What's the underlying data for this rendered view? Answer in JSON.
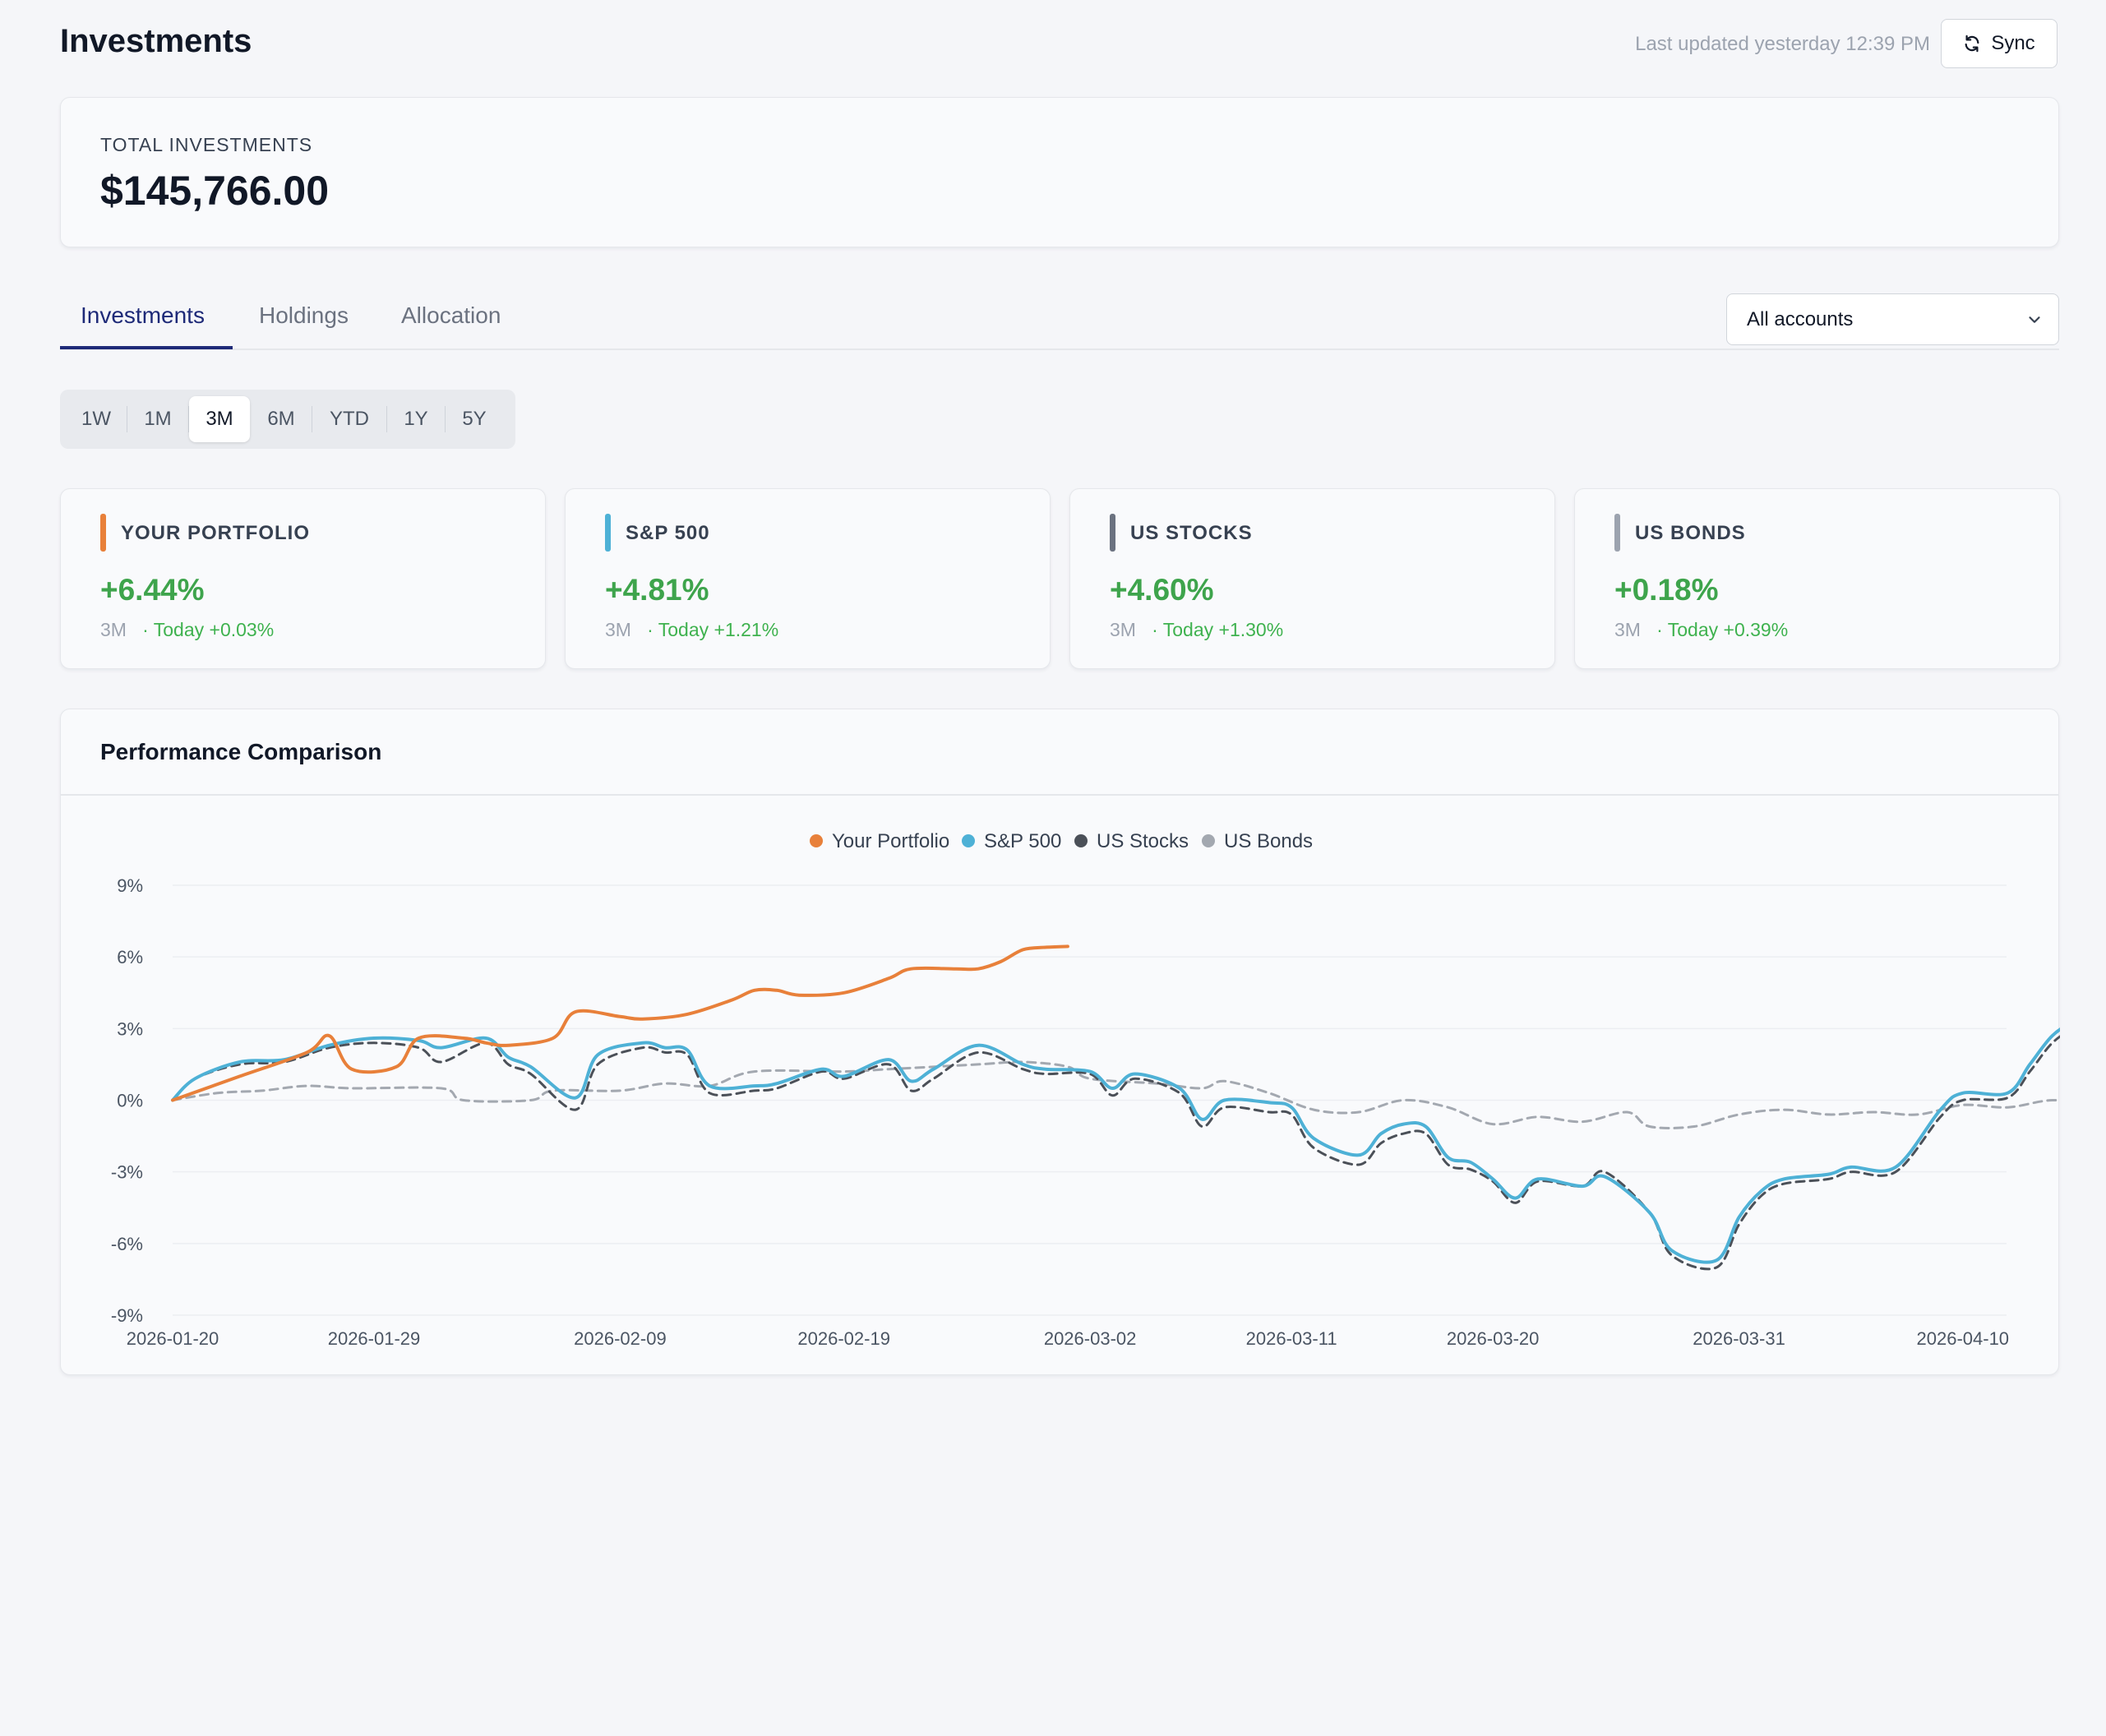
{
  "header": {
    "title": "Investments",
    "last_updated": "Last updated yesterday 12:39 PM",
    "sync_label": "Sync"
  },
  "total": {
    "label": "TOTAL INVESTMENTS",
    "value": "$145,766.00"
  },
  "tabs": [
    {
      "label": "Investments",
      "active": true
    },
    {
      "label": "Holdings",
      "active": false
    },
    {
      "label": "Allocation",
      "active": false
    }
  ],
  "account_select": {
    "value": "All accounts"
  },
  "ranges": [
    {
      "label": "1W",
      "active": false
    },
    {
      "label": "1M",
      "active": false
    },
    {
      "label": "3M",
      "active": true
    },
    {
      "label": "6M",
      "active": false
    },
    {
      "label": "YTD",
      "active": false
    },
    {
      "label": "1Y",
      "active": false
    },
    {
      "label": "5Y",
      "active": false
    }
  ],
  "stats": [
    {
      "label": "YOUR PORTFOLIO",
      "value": "+6.44%",
      "period": "3M",
      "today": "· Today +0.03%",
      "color": "#e8803a"
    },
    {
      "label": "S&P 500",
      "value": "+4.81%",
      "period": "3M",
      "today": "· Today +1.21%",
      "color": "#4eb1d6"
    },
    {
      "label": "US STOCKS",
      "value": "+4.60%",
      "period": "3M",
      "today": "· Today +1.30%",
      "color": "#6b7280"
    },
    {
      "label": "US BONDS",
      "value": "+0.18%",
      "period": "3M",
      "today": "· Today +0.39%",
      "color": "#9ca3af"
    }
  ],
  "performance": {
    "title": "Performance Comparison"
  },
  "chart_data": {
    "type": "line",
    "title": "",
    "xlabel": "",
    "ylabel": "",
    "x_ticks": [
      "2026-01-20",
      "2026-01-29",
      "2026-02-09",
      "2026-02-19",
      "2026-03-02",
      "2026-03-11",
      "2026-03-20",
      "2026-03-31",
      "2026-04-10"
    ],
    "x_range": [
      "2026-01-20",
      "2026-04-17"
    ],
    "y_ticks": [
      "9%",
      "6%",
      "3%",
      "0%",
      "-3%",
      "-6%",
      "-9%"
    ],
    "ylim": [
      -9,
      9
    ],
    "grid": true,
    "legend_position": "top-center",
    "series": [
      {
        "name": "Your Portfolio",
        "color": "#e8803a",
        "dash": false,
        "width": 4,
        "points": [
          [
            "2026-01-20",
            0
          ],
          [
            "2026-01-23",
            1.0
          ],
          [
            "2026-01-26",
            2.0
          ],
          [
            "2026-01-27",
            2.7
          ],
          [
            "2026-01-28",
            1.3
          ],
          [
            "2026-01-30",
            1.4
          ],
          [
            "2026-01-31",
            2.6
          ],
          [
            "2026-02-02",
            2.6
          ],
          [
            "2026-02-03",
            2.4
          ],
          [
            "2026-02-04",
            2.3
          ],
          [
            "2026-02-06",
            2.6
          ],
          [
            "2026-02-07",
            3.7
          ],
          [
            "2026-02-09",
            3.5
          ],
          [
            "2026-02-10",
            3.4
          ],
          [
            "2026-02-12",
            3.6
          ],
          [
            "2026-02-14",
            4.2
          ],
          [
            "2026-02-15",
            4.6
          ],
          [
            "2026-02-16",
            4.6
          ],
          [
            "2026-02-17",
            4.4
          ],
          [
            "2026-02-19",
            4.5
          ],
          [
            "2026-02-21",
            5.1
          ],
          [
            "2026-02-22",
            5.5
          ],
          [
            "2026-02-24",
            5.5
          ],
          [
            "2026-02-25",
            5.5
          ],
          [
            "2026-02-26",
            5.8
          ],
          [
            "2026-02-27",
            6.3
          ],
          [
            "2026-02-28",
            6.4
          ],
          [
            "2026-03-01",
            6.44
          ]
        ]
      },
      {
        "name": "S&P 500",
        "color": "#4eb1d6",
        "dash": false,
        "width": 4,
        "points": [
          [
            "2026-01-20",
            0
          ],
          [
            "2026-01-21",
            0.9
          ],
          [
            "2026-01-23",
            1.6
          ],
          [
            "2026-01-25",
            1.7
          ],
          [
            "2026-01-27",
            2.3
          ],
          [
            "2026-01-29",
            2.6
          ],
          [
            "2026-01-31",
            2.5
          ],
          [
            "2026-02-01",
            2.2
          ],
          [
            "2026-02-03",
            2.6
          ],
          [
            "2026-02-04",
            1.8
          ],
          [
            "2026-02-05",
            1.4
          ],
          [
            "2026-02-07",
            0.1
          ],
          [
            "2026-02-08",
            1.9
          ],
          [
            "2026-02-10",
            2.4
          ],
          [
            "2026-02-11",
            2.2
          ],
          [
            "2026-02-12",
            2.1
          ],
          [
            "2026-02-13",
            0.6
          ],
          [
            "2026-02-15",
            0.6
          ],
          [
            "2026-02-16",
            0.7
          ],
          [
            "2026-02-18",
            1.3
          ],
          [
            "2026-02-19",
            1.0
          ],
          [
            "2026-02-21",
            1.7
          ],
          [
            "2026-02-22",
            0.8
          ],
          [
            "2026-02-23",
            1.3
          ],
          [
            "2026-02-25",
            2.3
          ],
          [
            "2026-02-27",
            1.5
          ],
          [
            "2026-02-28",
            1.3
          ],
          [
            "2026-03-02",
            1.2
          ],
          [
            "2026-03-03",
            0.5
          ],
          [
            "2026-03-04",
            1.1
          ],
          [
            "2026-03-06",
            0.5
          ],
          [
            "2026-03-07",
            -0.8
          ],
          [
            "2026-03-08",
            0
          ],
          [
            "2026-03-10",
            -0.1
          ],
          [
            "2026-03-11",
            -0.3
          ],
          [
            "2026-03-12",
            -1.6
          ],
          [
            "2026-03-14",
            -2.3
          ],
          [
            "2026-03-15",
            -1.4
          ],
          [
            "2026-03-16",
            -1.0
          ],
          [
            "2026-03-17",
            -1.1
          ],
          [
            "2026-03-18",
            -2.4
          ],
          [
            "2026-03-19",
            -2.6
          ],
          [
            "2026-03-20",
            -3.3
          ],
          [
            "2026-03-21",
            -4.1
          ],
          [
            "2026-03-22",
            -3.3
          ],
          [
            "2026-03-24",
            -3.6
          ],
          [
            "2026-03-25",
            -3.2
          ],
          [
            "2026-03-27",
            -4.7
          ],
          [
            "2026-03-28",
            -6.3
          ],
          [
            "2026-03-30",
            -6.7
          ],
          [
            "2026-03-31",
            -4.9
          ],
          [
            "2026-04-01",
            -3.8
          ],
          [
            "2026-04-02",
            -3.3
          ],
          [
            "2026-04-04",
            -3.1
          ],
          [
            "2026-04-05",
            -2.8
          ],
          [
            "2026-04-07",
            -2.8
          ],
          [
            "2026-04-09",
            -0.4
          ],
          [
            "2026-04-10",
            0.3
          ],
          [
            "2026-04-12",
            0.3
          ],
          [
            "2026-04-13",
            1.5
          ],
          [
            "2026-04-14",
            2.7
          ],
          [
            "2026-04-15",
            3.3
          ],
          [
            "2026-04-16",
            3.6
          ],
          [
            "2026-04-17",
            4.81
          ]
        ]
      },
      {
        "name": "US Stocks",
        "color": "#4b5058",
        "dash": true,
        "width": 3,
        "points": [
          [
            "2026-01-20",
            0
          ],
          [
            "2026-01-21",
            0.9
          ],
          [
            "2026-01-23",
            1.5
          ],
          [
            "2026-01-25",
            1.6
          ],
          [
            "2026-01-27",
            2.2
          ],
          [
            "2026-01-29",
            2.4
          ],
          [
            "2026-01-31",
            2.2
          ],
          [
            "2026-02-01",
            1.6
          ],
          [
            "2026-02-03",
            2.4
          ],
          [
            "2026-02-04",
            1.5
          ],
          [
            "2026-02-05",
            1.1
          ],
          [
            "2026-02-07",
            -0.4
          ],
          [
            "2026-02-08",
            1.5
          ],
          [
            "2026-02-10",
            2.2
          ],
          [
            "2026-02-11",
            2.0
          ],
          [
            "2026-02-12",
            1.9
          ],
          [
            "2026-02-13",
            0.3
          ],
          [
            "2026-02-15",
            0.4
          ],
          [
            "2026-02-16",
            0.5
          ],
          [
            "2026-02-18",
            1.2
          ],
          [
            "2026-02-19",
            0.9
          ],
          [
            "2026-02-21",
            1.5
          ],
          [
            "2026-02-22",
            0.4
          ],
          [
            "2026-02-23",
            0.9
          ],
          [
            "2026-02-25",
            2.0
          ],
          [
            "2026-02-27",
            1.3
          ],
          [
            "2026-02-28",
            1.1
          ],
          [
            "2026-03-02",
            1.1
          ],
          [
            "2026-03-03",
            0.2
          ],
          [
            "2026-03-04",
            0.9
          ],
          [
            "2026-03-06",
            0.3
          ],
          [
            "2026-03-07",
            -1.1
          ],
          [
            "2026-03-08",
            -0.3
          ],
          [
            "2026-03-10",
            -0.5
          ],
          [
            "2026-03-11",
            -0.6
          ],
          [
            "2026-03-12",
            -2.0
          ],
          [
            "2026-03-14",
            -2.7
          ],
          [
            "2026-03-15",
            -1.8
          ],
          [
            "2026-03-16",
            -1.4
          ],
          [
            "2026-03-17",
            -1.4
          ],
          [
            "2026-03-18",
            -2.7
          ],
          [
            "2026-03-19",
            -2.9
          ],
          [
            "2026-03-20",
            -3.4
          ],
          [
            "2026-03-21",
            -4.3
          ],
          [
            "2026-03-22",
            -3.4
          ],
          [
            "2026-03-24",
            -3.6
          ],
          [
            "2026-03-25",
            -3.0
          ],
          [
            "2026-03-27",
            -4.7
          ],
          [
            "2026-03-28",
            -6.5
          ],
          [
            "2026-03-30",
            -7.0
          ],
          [
            "2026-03-31",
            -5.2
          ],
          [
            "2026-04-01",
            -4.0
          ],
          [
            "2026-04-02",
            -3.5
          ],
          [
            "2026-04-04",
            -3.3
          ],
          [
            "2026-04-05",
            -3.0
          ],
          [
            "2026-04-07",
            -3.0
          ],
          [
            "2026-04-09",
            -0.7
          ],
          [
            "2026-04-10",
            0
          ],
          [
            "2026-04-12",
            0.1
          ],
          [
            "2026-04-13",
            1.2
          ],
          [
            "2026-04-14",
            2.4
          ],
          [
            "2026-04-15",
            3.0
          ],
          [
            "2026-04-16",
            3.2
          ],
          [
            "2026-04-17",
            4.6
          ]
        ]
      },
      {
        "name": "US Bonds",
        "color": "#a3a8b0",
        "dash": true,
        "width": 3,
        "points": [
          [
            "2026-01-20",
            0
          ],
          [
            "2026-01-22",
            0.3
          ],
          [
            "2026-01-24",
            0.4
          ],
          [
            "2026-01-26",
            0.6
          ],
          [
            "2026-01-28",
            0.5
          ],
          [
            "2026-02-01",
            0.5
          ],
          [
            "2026-02-02",
            0
          ],
          [
            "2026-02-05",
            0
          ],
          [
            "2026-02-06",
            0.4
          ],
          [
            "2026-02-09",
            0.4
          ],
          [
            "2026-02-11",
            0.7
          ],
          [
            "2026-02-13",
            0.6
          ],
          [
            "2026-02-15",
            1.2
          ],
          [
            "2026-02-19",
            1.2
          ],
          [
            "2026-02-21",
            1.3
          ],
          [
            "2026-02-25",
            1.5
          ],
          [
            "2026-02-27",
            1.6
          ],
          [
            "2026-03-01",
            1.4
          ],
          [
            "2026-03-02",
            0.9
          ],
          [
            "2026-03-05",
            0.7
          ],
          [
            "2026-03-07",
            0.5
          ],
          [
            "2026-03-08",
            0.8
          ],
          [
            "2026-03-10",
            0.3
          ],
          [
            "2026-03-12",
            -0.4
          ],
          [
            "2026-03-14",
            -0.5
          ],
          [
            "2026-03-16",
            0
          ],
          [
            "2026-03-18",
            -0.3
          ],
          [
            "2026-03-20",
            -1.0
          ],
          [
            "2026-03-22",
            -0.7
          ],
          [
            "2026-03-24",
            -0.9
          ],
          [
            "2026-03-26",
            -0.5
          ],
          [
            "2026-03-27",
            -1.1
          ],
          [
            "2026-03-29",
            -1.1
          ],
          [
            "2026-03-31",
            -0.6
          ],
          [
            "2026-04-02",
            -0.4
          ],
          [
            "2026-04-04",
            -0.6
          ],
          [
            "2026-04-06",
            -0.5
          ],
          [
            "2026-04-08",
            -0.6
          ],
          [
            "2026-04-10",
            -0.2
          ],
          [
            "2026-04-12",
            -0.3
          ],
          [
            "2026-04-14",
            0
          ],
          [
            "2026-04-16",
            -0.2
          ],
          [
            "2026-04-17",
            0.18
          ]
        ]
      }
    ]
  }
}
